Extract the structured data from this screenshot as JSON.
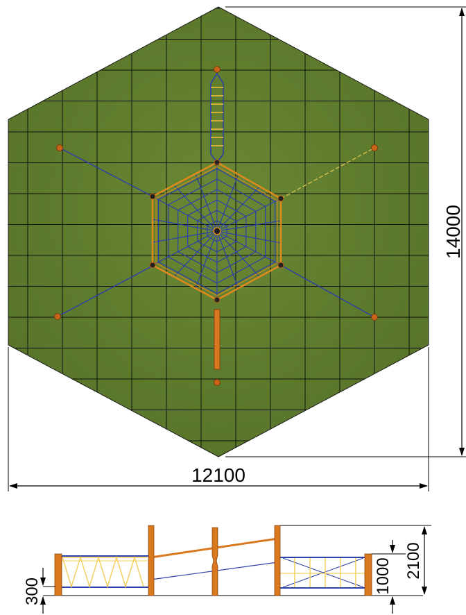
{
  "plan": {
    "width_label": "12100",
    "height_label": "14000",
    "colors": {
      "grass": "#5d7a2c",
      "grid": "#111111",
      "net": "#2b3fa8",
      "frame": "#e08a1c",
      "post": "#c8641a",
      "ladder": "#f0d060"
    }
  },
  "elevation": {
    "dim_300": "300",
    "dim_1000": "1000",
    "dim_2100": "2100"
  }
}
